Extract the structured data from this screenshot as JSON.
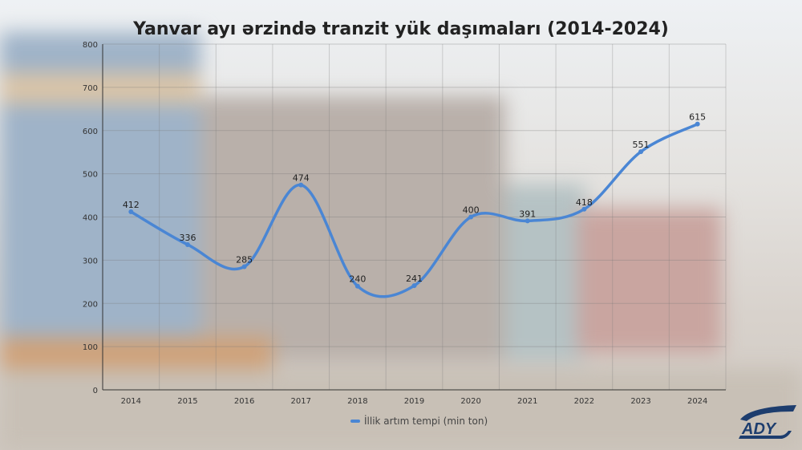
{
  "chart_data": {
    "type": "line",
    "title": "Yanvar ayı ərzində tranzit yük daşımaları (2014-2024)",
    "categories": [
      "2014",
      "2015",
      "2016",
      "2017",
      "2018",
      "2019",
      "2020",
      "2021",
      "2022",
      "2023",
      "2024"
    ],
    "series": [
      {
        "name": "İllik artım tempi (min ton)",
        "values": [
          412,
          336,
          285,
          474,
          240,
          241,
          400,
          391,
          418,
          551,
          615
        ],
        "color": "#4a86d4"
      }
    ],
    "ylim": [
      0,
      800
    ],
    "yticks": [
      0,
      100,
      200,
      300,
      400,
      500,
      600,
      700,
      800
    ],
    "grid": true,
    "smooth": true,
    "data_labels": true,
    "legend": "bottom-left"
  },
  "logo": {
    "text": "ADY",
    "color": "#1d3d6e"
  }
}
